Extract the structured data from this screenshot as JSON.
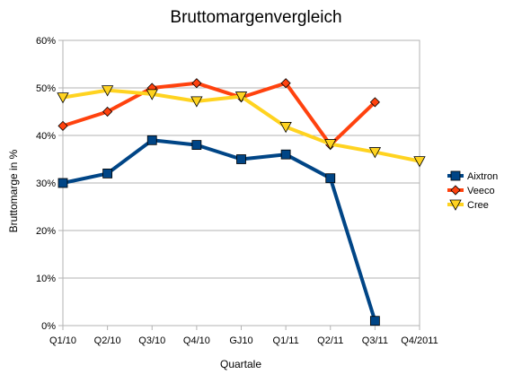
{
  "chart_data": {
    "type": "line",
    "title": "Bruttomargenvergleich",
    "xlabel": "Quartale",
    "ylabel": "Bruttomarge in %",
    "categories": [
      "Q1/10",
      "Q2/10",
      "Q3/10",
      "Q4/10",
      "GJ10",
      "Q1/11",
      "Q2/11",
      "Q3/11",
      "Q4/2011"
    ],
    "ylim": [
      0,
      60
    ],
    "yticks": [
      0,
      10,
      20,
      30,
      40,
      50,
      60
    ],
    "ytick_labels": [
      "0%",
      "10%",
      "20%",
      "30%",
      "40%",
      "50%",
      "60%"
    ],
    "grid": "horizontal",
    "legend": "right",
    "series": [
      {
        "name": "Aixtron",
        "color": "#004586",
        "marker": "square",
        "values": [
          30,
          32,
          39,
          38,
          35,
          36,
          31,
          1,
          null
        ]
      },
      {
        "name": "Veeco",
        "color": "#ff420e",
        "marker": "diamond",
        "values": [
          42,
          45,
          50,
          51,
          48,
          51,
          38,
          47,
          null
        ]
      },
      {
        "name": "Cree",
        "color": "#ffd320",
        "marker": "triangle-down",
        "values": [
          48,
          49.5,
          48.7,
          47.2,
          48.2,
          41.8,
          38.2,
          36.5,
          34.6
        ]
      }
    ]
  }
}
